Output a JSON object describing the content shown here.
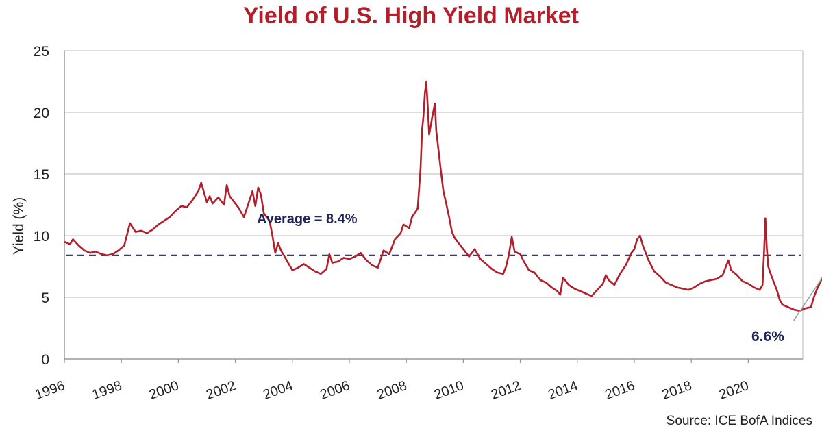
{
  "chart_data": {
    "type": "line",
    "title": "Yield of U.S. High Yield Market",
    "ylabel": "Yield (%)",
    "xlabel": "",
    "ylim": [
      0,
      25
    ],
    "xlim": [
      1996,
      2021.8
    ],
    "yticks": [
      0,
      5,
      10,
      15,
      20,
      25
    ],
    "xticks": [
      "1996",
      "1998",
      "2000",
      "2002",
      "2004",
      "2006",
      "2008",
      "2010",
      "2012",
      "2014",
      "2016",
      "2018",
      "2020"
    ],
    "grid": "horizontal",
    "source": "Source: ICE BofA Indices",
    "average": {
      "value": 8.4,
      "label": "Average = 8.4%"
    },
    "last_value_label": "6.6%",
    "series": [
      {
        "points": [
          [
            1996.0,
            9.5
          ],
          [
            1996.2,
            9.3
          ],
          [
            1996.3,
            9.7
          ],
          [
            1996.5,
            9.2
          ],
          [
            1996.7,
            8.8
          ],
          [
            1996.9,
            8.6
          ],
          [
            1997.1,
            8.7
          ],
          [
            1997.3,
            8.5
          ],
          [
            1997.5,
            8.4
          ],
          [
            1997.7,
            8.5
          ],
          [
            1997.9,
            8.8
          ],
          [
            1998.1,
            9.2
          ],
          [
            1998.3,
            11.0
          ],
          [
            1998.5,
            10.3
          ],
          [
            1998.7,
            10.4
          ],
          [
            1998.9,
            10.2
          ],
          [
            1999.1,
            10.5
          ],
          [
            1999.3,
            10.9
          ],
          [
            1999.5,
            11.2
          ],
          [
            1999.7,
            11.5
          ],
          [
            1999.9,
            12.0
          ],
          [
            2000.1,
            12.4
          ],
          [
            2000.3,
            12.3
          ],
          [
            2000.5,
            12.9
          ],
          [
            2000.7,
            13.6
          ],
          [
            2000.8,
            14.3
          ],
          [
            2000.9,
            13.5
          ],
          [
            2001.0,
            12.7
          ],
          [
            2001.1,
            13.2
          ],
          [
            2001.2,
            12.6
          ],
          [
            2001.4,
            13.1
          ],
          [
            2001.6,
            12.5
          ],
          [
            2001.7,
            14.1
          ],
          [
            2001.8,
            13.2
          ],
          [
            2002.0,
            12.6
          ],
          [
            2002.1,
            12.3
          ],
          [
            2002.3,
            11.5
          ],
          [
            2002.5,
            12.9
          ],
          [
            2002.6,
            13.6
          ],
          [
            2002.7,
            12.4
          ],
          [
            2002.8,
            13.9
          ],
          [
            2002.9,
            13.3
          ],
          [
            2003.0,
            11.8
          ],
          [
            2003.2,
            11.2
          ],
          [
            2003.3,
            10.0
          ],
          [
            2003.4,
            8.6
          ],
          [
            2003.5,
            9.4
          ],
          [
            2003.6,
            8.8
          ],
          [
            2003.8,
            8.0
          ],
          [
            2004.0,
            7.2
          ],
          [
            2004.2,
            7.4
          ],
          [
            2004.4,
            7.7
          ],
          [
            2004.6,
            7.4
          ],
          [
            2004.8,
            7.1
          ],
          [
            2005.0,
            6.9
          ],
          [
            2005.2,
            7.3
          ],
          [
            2005.3,
            8.5
          ],
          [
            2005.4,
            7.8
          ],
          [
            2005.6,
            7.9
          ],
          [
            2005.8,
            8.2
          ],
          [
            2006.0,
            8.1
          ],
          [
            2006.2,
            8.3
          ],
          [
            2006.4,
            8.6
          ],
          [
            2006.6,
            8.0
          ],
          [
            2006.8,
            7.6
          ],
          [
            2007.0,
            7.4
          ],
          [
            2007.2,
            8.8
          ],
          [
            2007.4,
            8.5
          ],
          [
            2007.6,
            9.7
          ],
          [
            2007.8,
            10.2
          ],
          [
            2007.9,
            10.9
          ],
          [
            2008.1,
            10.6
          ],
          [
            2008.2,
            11.5
          ],
          [
            2008.4,
            12.2
          ],
          [
            2008.5,
            15.5
          ],
          [
            2008.55,
            18.5
          ],
          [
            2008.6,
            19.7
          ],
          [
            2008.65,
            21.5
          ],
          [
            2008.7,
            22.5
          ],
          [
            2008.75,
            20.5
          ],
          [
            2008.8,
            18.2
          ],
          [
            2008.9,
            19.5
          ],
          [
            2009.0,
            20.7
          ],
          [
            2009.05,
            18.5
          ],
          [
            2009.1,
            17.5
          ],
          [
            2009.2,
            15.5
          ],
          [
            2009.3,
            13.6
          ],
          [
            2009.4,
            12.6
          ],
          [
            2009.5,
            11.5
          ],
          [
            2009.6,
            10.3
          ],
          [
            2009.7,
            9.8
          ],
          [
            2009.9,
            9.2
          ],
          [
            2010.0,
            8.9
          ],
          [
            2010.2,
            8.3
          ],
          [
            2010.4,
            8.9
          ],
          [
            2010.6,
            8.1
          ],
          [
            2010.8,
            7.7
          ],
          [
            2011.0,
            7.3
          ],
          [
            2011.2,
            7.0
          ],
          [
            2011.4,
            6.9
          ],
          [
            2011.5,
            7.5
          ],
          [
            2011.6,
            8.5
          ],
          [
            2011.7,
            9.9
          ],
          [
            2011.8,
            8.7
          ],
          [
            2012.0,
            8.5
          ],
          [
            2012.1,
            8.0
          ],
          [
            2012.3,
            7.2
          ],
          [
            2012.5,
            7.0
          ],
          [
            2012.7,
            6.4
          ],
          [
            2012.9,
            6.2
          ],
          [
            2013.1,
            5.8
          ],
          [
            2013.3,
            5.5
          ],
          [
            2013.4,
            5.2
          ],
          [
            2013.5,
            6.6
          ],
          [
            2013.7,
            6.0
          ],
          [
            2013.9,
            5.7
          ],
          [
            2014.1,
            5.5
          ],
          [
            2014.3,
            5.3
          ],
          [
            2014.5,
            5.1
          ],
          [
            2014.7,
            5.6
          ],
          [
            2014.9,
            6.1
          ],
          [
            2015.0,
            6.8
          ],
          [
            2015.1,
            6.4
          ],
          [
            2015.3,
            6.0
          ],
          [
            2015.5,
            6.9
          ],
          [
            2015.7,
            7.6
          ],
          [
            2015.9,
            8.6
          ],
          [
            2016.0,
            8.9
          ],
          [
            2016.1,
            9.7
          ],
          [
            2016.2,
            10.0
          ],
          [
            2016.3,
            9.2
          ],
          [
            2016.5,
            8.0
          ],
          [
            2016.7,
            7.1
          ],
          [
            2016.9,
            6.7
          ],
          [
            2017.1,
            6.2
          ],
          [
            2017.3,
            6.0
          ],
          [
            2017.5,
            5.8
          ],
          [
            2017.7,
            5.7
          ],
          [
            2017.9,
            5.6
          ],
          [
            2018.1,
            5.8
          ],
          [
            2018.3,
            6.1
          ],
          [
            2018.5,
            6.3
          ],
          [
            2018.7,
            6.4
          ],
          [
            2018.9,
            6.5
          ],
          [
            2019.1,
            6.8
          ],
          [
            2019.2,
            7.4
          ],
          [
            2019.3,
            8.0
          ],
          [
            2019.4,
            7.2
          ],
          [
            2019.6,
            6.8
          ],
          [
            2019.8,
            6.3
          ],
          [
            2020.0,
            6.1
          ],
          [
            2020.2,
            5.8
          ],
          [
            2020.4,
            5.6
          ],
          [
            2020.5,
            6.0
          ],
          [
            2020.55,
            8.5
          ],
          [
            2020.6,
            11.4
          ],
          [
            2020.65,
            9.0
          ],
          [
            2020.7,
            7.5
          ],
          [
            2020.8,
            6.8
          ],
          [
            2020.9,
            6.2
          ],
          [
            2021.0,
            5.6
          ],
          [
            2021.1,
            4.8
          ],
          [
            2021.2,
            4.4
          ],
          [
            2021.4,
            4.2
          ],
          [
            2021.6,
            4.0
          ],
          [
            2021.8,
            3.9
          ],
          [
            2022.0,
            4.1
          ],
          [
            2022.2,
            4.2
          ],
          [
            2022.3,
            5.0
          ],
          [
            2022.4,
            5.6
          ],
          [
            2022.5,
            6.1
          ],
          [
            2022.6,
            6.6
          ]
        ]
      }
    ]
  }
}
